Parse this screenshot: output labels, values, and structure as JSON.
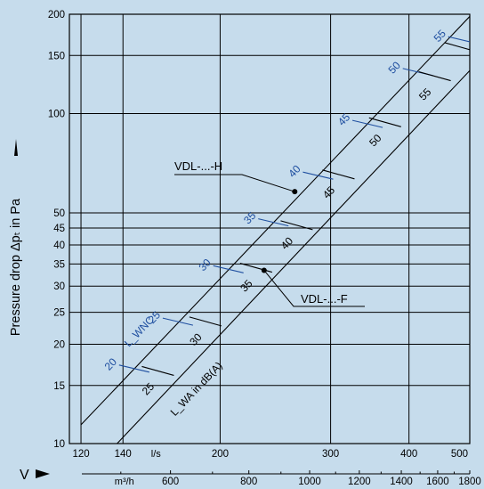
{
  "chart_data": {
    "type": "line",
    "title": "",
    "ylabel": "Pressure drop Δpₜ in Pa",
    "ylabel_arrow_icon": "up-arrow-icon",
    "x_symbol": "V",
    "x_arrow_icon": "right-arrow-icon",
    "x_scale": "log",
    "y_scale": "log",
    "grid": true,
    "xlim_ls": [
      115,
      500
    ],
    "ylim_pa": [
      10,
      200
    ],
    "x_ticks_ls": [
      120,
      140,
      200,
      300,
      400,
      500
    ],
    "x_unit_ls": "l/s",
    "x_ticks_m3h": [
      600,
      800,
      1000,
      1200,
      1400,
      1600,
      1800
    ],
    "x_unit_m3h": "m³/h",
    "y_ticks": [
      10,
      15,
      20,
      25,
      30,
      35,
      40,
      45,
      50,
      100,
      150,
      200
    ],
    "series": [
      {
        "name": "VDL-...-H",
        "color": "#000000",
        "x": [
          120,
          500
        ],
        "y": [
          11.4,
          197
        ]
      },
      {
        "name": "VDL-...-F",
        "color": "#000000",
        "x": [
          137,
          500
        ],
        "y": [
          10,
          135
        ]
      }
    ],
    "callouts": [
      {
        "label": "VDL-...-H",
        "x": 263,
        "y": 58
      },
      {
        "label": "VDL-...-F",
        "x": 235,
        "y": 33.5
      }
    ],
    "lwnc_label": "L_WNC",
    "lwa_label": "L_WA in dB(A)",
    "lwnc_marks": [
      {
        "label": "20",
        "x": 138,
        "y": 17.3
      },
      {
        "label": "25",
        "x": 162,
        "y": 24.0
      },
      {
        "label": "30",
        "x": 195,
        "y": 34.6
      },
      {
        "label": "35",
        "x": 230,
        "y": 48.0
      },
      {
        "label": "40",
        "x": 271,
        "y": 66.5
      },
      {
        "label": "45",
        "x": 325,
        "y": 95.4
      },
      {
        "label": "50",
        "x": 391,
        "y": 137
      },
      {
        "label": "55",
        "x": 462,
        "y": 171
      }
    ],
    "lwa_marks": [
      {
        "label": "25",
        "x": 152,
        "y": 16.5
      },
      {
        "label": "30",
        "x": 181,
        "y": 23.3
      },
      {
        "label": "35",
        "x": 218,
        "y": 33.9
      },
      {
        "label": "40",
        "x": 253,
        "y": 45.6
      },
      {
        "label": "45",
        "x": 295,
        "y": 65.0
      },
      {
        "label": "50",
        "x": 350,
        "y": 93.5
      },
      {
        "label": "55",
        "x": 420,
        "y": 129
      },
      {
        "label": "",
        "x": 462,
        "y": 158
      }
    ],
    "colors": {
      "background": "#c6dcec",
      "axis": "#000000",
      "lwnc": "#1f4fa0",
      "lwa": "#000000"
    }
  }
}
